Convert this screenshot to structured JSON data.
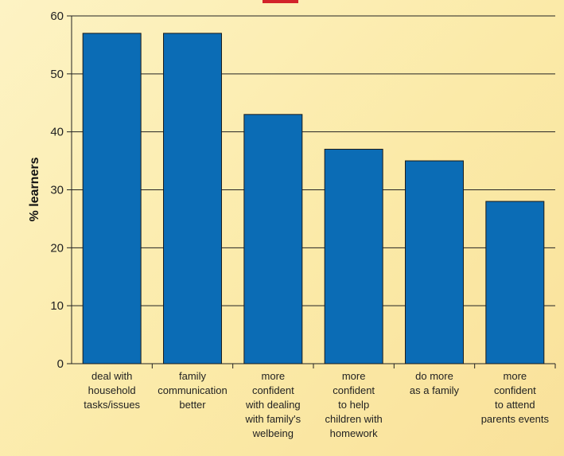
{
  "chart_data": {
    "type": "bar",
    "title": "",
    "xlabel": "",
    "ylabel": "% learners",
    "ylim": [
      0,
      60
    ],
    "yticks": [
      0,
      10,
      20,
      30,
      40,
      50,
      60
    ],
    "grid": true,
    "categories": [
      [
        "deal with",
        "household",
        "tasks/issues"
      ],
      [
        "family",
        "communication",
        "better"
      ],
      [
        "more",
        "confident",
        "with dealing",
        "with family's",
        "welbeing"
      ],
      [
        "more",
        "confident",
        "to help",
        "children with",
        "homework"
      ],
      [
        "do more",
        "as a family"
      ],
      [
        "more",
        "confident",
        "to attend",
        "parents events"
      ]
    ],
    "values": [
      57,
      57,
      43,
      37,
      35,
      28
    ],
    "colors": {
      "bar": "#0b6cb5",
      "bar_stroke": "#1a1a1a",
      "grid": "#222222",
      "title_fragment": "#d2232a"
    }
  }
}
